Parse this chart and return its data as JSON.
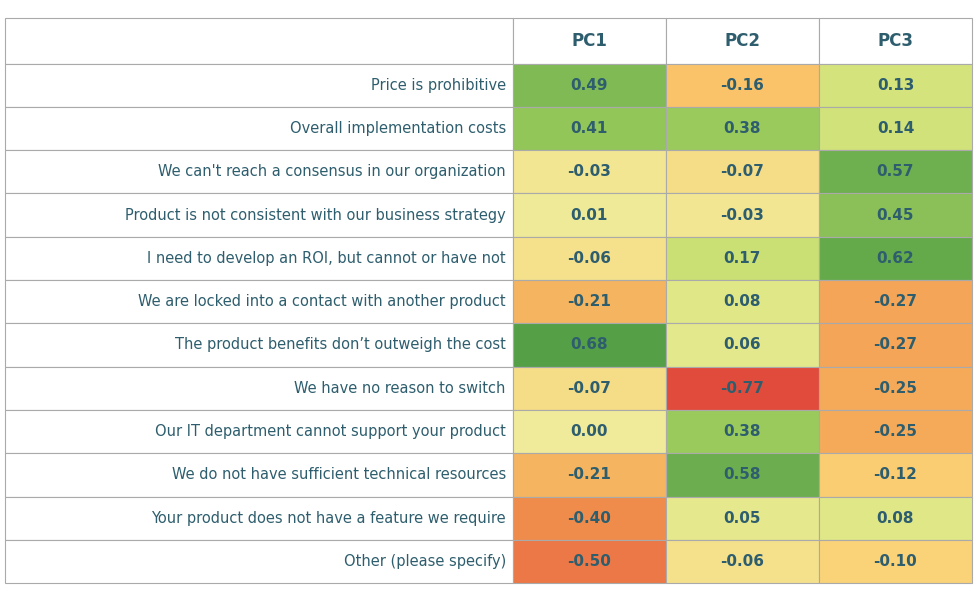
{
  "rows": [
    "Price is prohibitive",
    "Overall implementation costs",
    "We can't reach a consensus in our organization",
    "Product is not consistent with our business strategy",
    "I need to develop an ROI, but cannot or have not",
    "We are locked into a contact with another product",
    "The product benefits don’t outweigh the cost",
    "We have no reason to switch",
    "Our IT department cannot support your product",
    "We do not have sufficient technical resources",
    "Your product does not have a feature we require",
    "Other (please specify)"
  ],
  "columns": [
    "PC1",
    "PC2",
    "PC3"
  ],
  "values": [
    [
      0.49,
      -0.16,
      0.13
    ],
    [
      0.41,
      0.38,
      0.14
    ],
    [
      -0.03,
      -0.07,
      0.57
    ],
    [
      0.01,
      -0.03,
      0.45
    ],
    [
      -0.06,
      0.17,
      0.62
    ],
    [
      -0.21,
      0.08,
      -0.27
    ],
    [
      0.68,
      0.06,
      -0.27
    ],
    [
      -0.07,
      -0.77,
      -0.25
    ],
    [
      0.0,
      0.38,
      -0.25
    ],
    [
      -0.21,
      0.58,
      -0.12
    ],
    [
      -0.4,
      0.05,
      0.08
    ],
    [
      -0.5,
      -0.06,
      -0.1
    ]
  ],
  "header_text_color": "#2e5e6e",
  "row_label_color": "#2e5e6e",
  "cell_text_color": "#2e5e6e",
  "border_color": "#aaaaaa",
  "background_color": "#ffffff",
  "col_header_fontsize": 12,
  "row_label_fontsize": 10.5,
  "cell_fontsize": 11,
  "fig_width": 9.74,
  "fig_height": 5.95
}
